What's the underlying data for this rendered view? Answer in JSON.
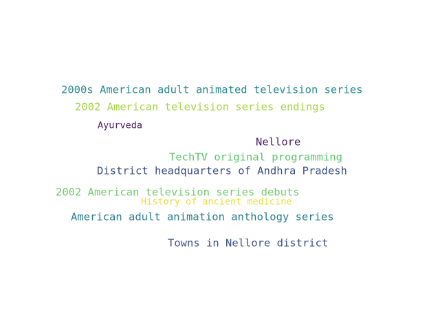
{
  "words": [
    {
      "text": "2000s American adult animated television series",
      "color": "#2a8a8f"
    },
    {
      "text": "2002 American television series endings",
      "color": "#a6d44a"
    },
    {
      "text": "Ayurveda",
      "color": "#4a1a5c"
    },
    {
      "text": "Nellore",
      "color": "#4a1a6a"
    },
    {
      "text": "TechTV original programming",
      "color": "#5cc26a"
    },
    {
      "text": "District headquarters of Andhra Pradesh",
      "color": "#3b4f85"
    },
    {
      "text": "2002 American television series debuts",
      "color": "#6fca6a"
    },
    {
      "text": "History of ancient medicine",
      "color": "#e6dc3a"
    },
    {
      "text": "American adult animation anthology series",
      "color": "#2c7d8e"
    },
    {
      "text": "Towns in Nellore district",
      "color": "#3b4f85"
    }
  ]
}
